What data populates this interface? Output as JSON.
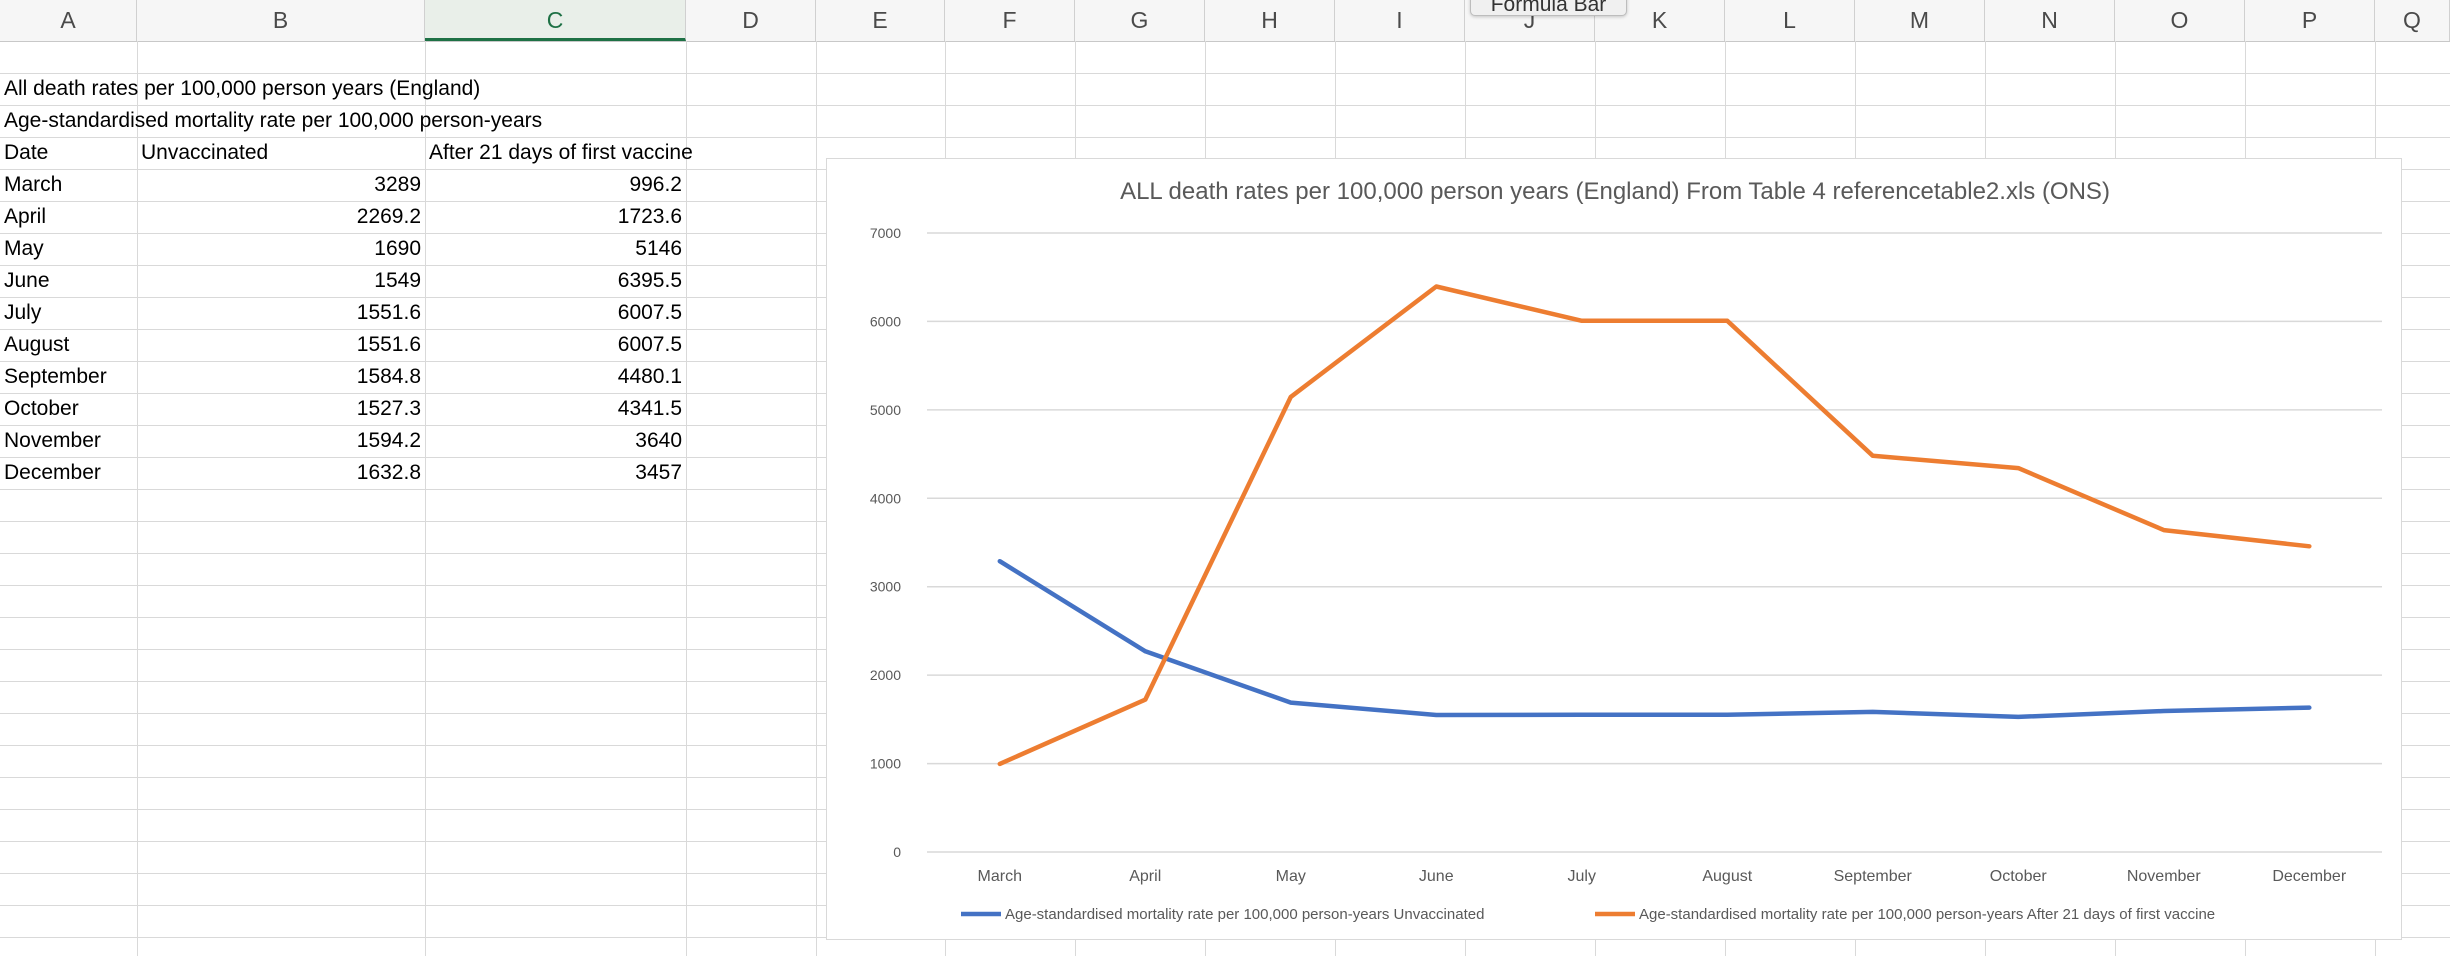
{
  "formula_bar_tooltip": "Formula Bar",
  "columns": [
    "A",
    "B",
    "C",
    "D",
    "E",
    "F",
    "G",
    "H",
    "I",
    "J",
    "K",
    "L",
    "M",
    "N",
    "O",
    "P",
    "Q"
  ],
  "selected_column": "C",
  "sheet": {
    "title_row1": "All death rates per 100,000 person years (England)",
    "title_row2": "Age-standardised mortality rate per 100,000 person-years",
    "headers": [
      "Date",
      "Unvaccinated",
      "After 21 days of first vaccine"
    ],
    "rows": [
      {
        "date": "March",
        "unvax": "3289",
        "vax": "996.2"
      },
      {
        "date": "April",
        "unvax": "2269.2",
        "vax": "1723.6"
      },
      {
        "date": "May",
        "unvax": "1690",
        "vax": "5146"
      },
      {
        "date": "June",
        "unvax": "1549",
        "vax": "6395.5"
      },
      {
        "date": "July",
        "unvax": "1551.6",
        "vax": "6007.5"
      },
      {
        "date": "August",
        "unvax": "1551.6",
        "vax": "6007.5"
      },
      {
        "date": "September",
        "unvax": "1584.8",
        "vax": "4480.1"
      },
      {
        "date": "October",
        "unvax": "1527.3",
        "vax": "4341.5"
      },
      {
        "date": "November",
        "unvax": "1594.2",
        "vax": "3640"
      },
      {
        "date": "December",
        "unvax": "1632.8",
        "vax": "3457"
      }
    ]
  },
  "chart_data": {
    "type": "line",
    "title": "ALL death rates per 100,000 person years (England) From Table 4 referencetable2.xls (ONS)",
    "categories": [
      "March",
      "April",
      "May",
      "June",
      "July",
      "August",
      "September",
      "October",
      "November",
      "December"
    ],
    "series": [
      {
        "name": "Age-standardised mortality rate per 100,000 person-years Unvaccinated",
        "color": "#4472c4",
        "values": [
          3289,
          2269.2,
          1690,
          1549,
          1551.6,
          1551.6,
          1584.8,
          1527.3,
          1594.2,
          1632.8
        ]
      },
      {
        "name": "Age-standardised mortality rate per 100,000 person-years After 21 days of first vaccine",
        "color": "#ed7d31",
        "values": [
          996.2,
          1723.6,
          5146,
          6395.5,
          6007.5,
          6007.5,
          4480.1,
          4341.5,
          3640,
          3457
        ]
      }
    ],
    "ylim": [
      0,
      7000
    ],
    "yticks": [
      0,
      1000,
      2000,
      3000,
      4000,
      5000,
      6000,
      7000
    ],
    "grid": true,
    "legend": "bottom"
  }
}
